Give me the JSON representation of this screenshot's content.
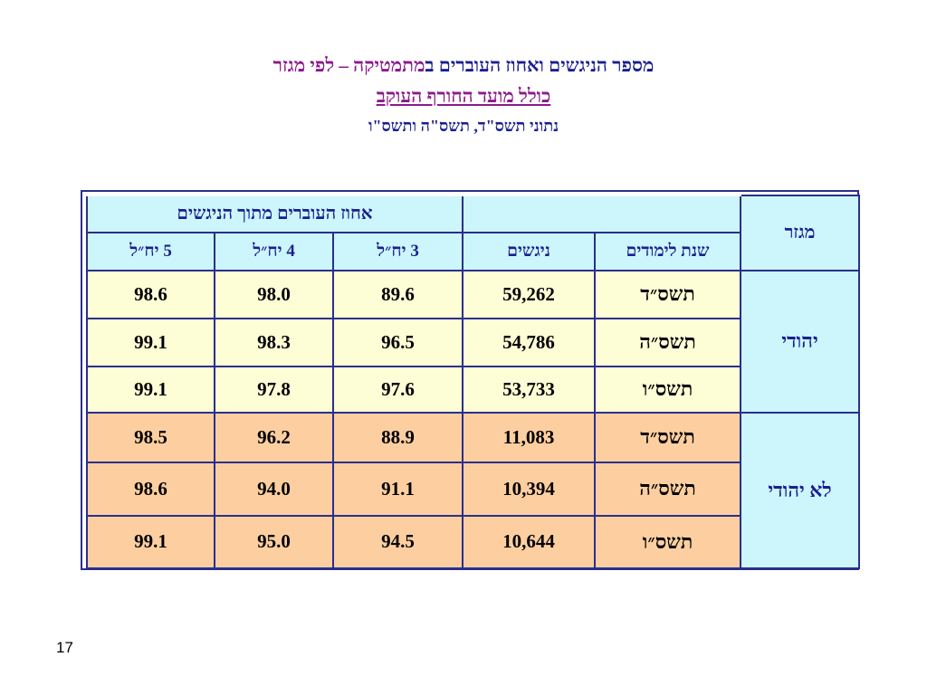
{
  "title": {
    "part1": "מספר הניגשים ואחוז העוברים ב",
    "part2": "מתמטיקה – לפי מגזר",
    "subtitle": "כולל מועד החורף העוקב",
    "source_note": "נתוני תשס\"ד, תשס\"ה ותשס\"ו"
  },
  "table": {
    "header_top": "אחוז העוברים מתוך הניגשים",
    "headers": {
      "sector": "מגזר",
      "year": "שנת לימודים",
      "examinees": "ניגשים",
      "units3": "3 יח״ל",
      "units4": "4 יח״ל",
      "units5": "5 יח״ל"
    },
    "groups": [
      {
        "sector": "יהודי",
        "rows": [
          {
            "year": "תשס״ד",
            "examinees": "59,262",
            "u3": "89.6",
            "u4": "98.0",
            "u5": "98.6"
          },
          {
            "year": "תשס״ה",
            "examinees": "54,786",
            "u3": "96.5",
            "u4": "98.3",
            "u5": "99.1"
          },
          {
            "year": "תשס״ו",
            "examinees": "53,733",
            "u3": "97.6",
            "u4": "97.8",
            "u5": "99.1"
          }
        ]
      },
      {
        "sector": "לא יהודי",
        "rows": [
          {
            "year": "תשס״ד",
            "examinees": "11,083",
            "u3": "88.9",
            "u4": "96.2",
            "u5": "98.5"
          },
          {
            "year": "תשס״ה",
            "examinees": "10,394",
            "u3": "91.1",
            "u4": "94.0",
            "u5": "98.6"
          },
          {
            "year": "תשס״ו",
            "examinees": "10,644",
            "u3": "94.5",
            "u4": "95.0",
            "u5": "99.1"
          }
        ]
      }
    ]
  },
  "page_number": "17",
  "colors": {
    "header_bg": "#ccf6fb",
    "jewish_bg": "#fdfdd6",
    "non_jewish_bg": "#fdcfa0",
    "border": "#2a2f8c",
    "title_blue": "#1a1f8f",
    "title_purple": "#8b1a8b"
  }
}
